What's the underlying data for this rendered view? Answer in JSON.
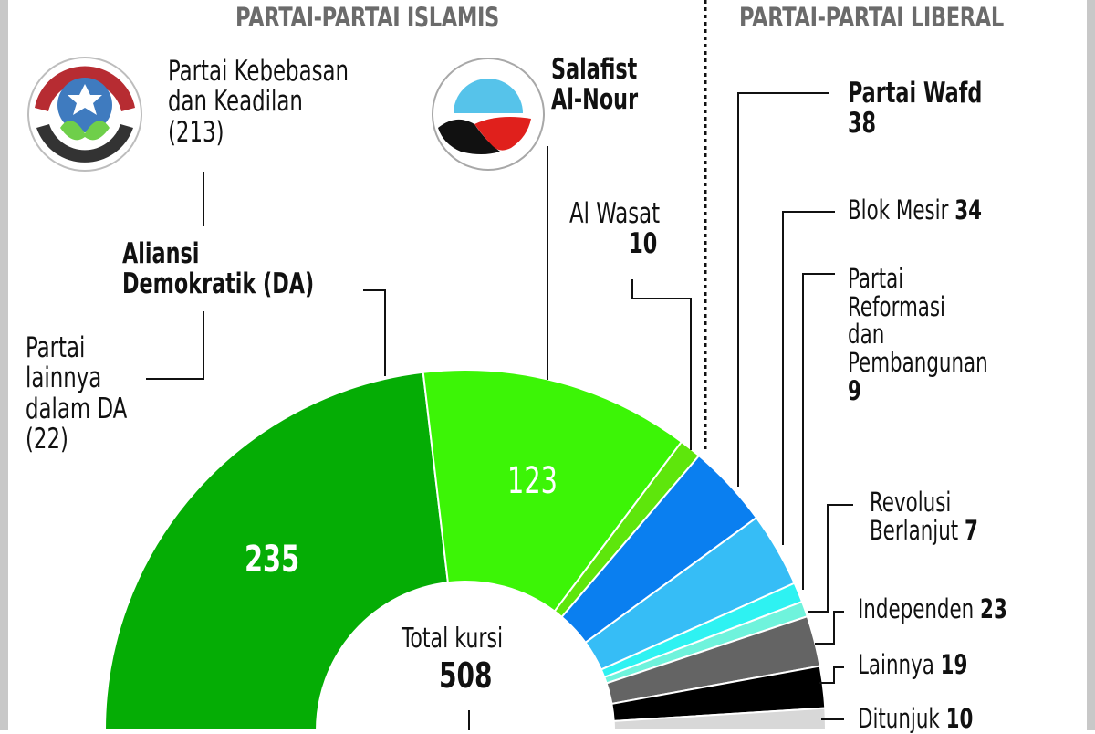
{
  "headers": {
    "islamist": "PARTAI-PARTAI ISLAMIS",
    "liberal": "PARTAI-PARTAI LIBERAL"
  },
  "logos": {
    "fjp": "freedom-and-justice-party-logo",
    "nour": "al-nour-party-logo"
  },
  "labels": {
    "fjp": {
      "line1": "Partai Kebebasan",
      "line2": "dan Keadilan",
      "line3": "(213)"
    },
    "da": {
      "line1": "Aliansi",
      "line2": "Demokratik (DA)"
    },
    "da_others": {
      "line1": "Partai",
      "line2": "lainnya",
      "line3": "dalam DA",
      "line4": "(22)"
    },
    "nour": {
      "line1": "Salafist",
      "line2": "Al-Nour"
    },
    "wasat": {
      "name": "Al Wasat",
      "value": "10"
    },
    "wafd": {
      "name": "Partai Wafd",
      "value": "38"
    },
    "blok": {
      "name": "Blok Mesir",
      "value": "34"
    },
    "reform": {
      "line1": "Partai",
      "line2": "Reformasi",
      "line3": "dan",
      "line4": "Pembangunan",
      "value": "9"
    },
    "revolusi": {
      "line1": "Revolusi",
      "line2": "Berlanjut",
      "value": "7"
    },
    "independen": {
      "name": "Independen",
      "value": "23"
    },
    "lainnya": {
      "name": "Lainnya",
      "value": "19"
    },
    "ditunjuk": {
      "name": "Ditunjuk",
      "value": "10"
    }
  },
  "center": {
    "label": "Total kursi",
    "value": "508"
  },
  "slice_labels": {
    "da": "235",
    "nour": "123"
  },
  "chart_data": {
    "type": "pie",
    "subtype": "half-donut",
    "title": "",
    "groups": [
      {
        "name": "PARTAI-PARTAI ISLAMIS",
        "members": [
          "Aliansi Demokratik (DA)",
          "Salafist Al-Nour",
          "Al Wasat"
        ]
      },
      {
        "name": "PARTAI-PARTAI LIBERAL",
        "members": [
          "Partai Wafd",
          "Blok Mesir",
          "Partai Reformasi dan Pembangunan",
          "Revolusi Berlanjut"
        ]
      }
    ],
    "categories": [
      "Aliansi Demokratik (DA)",
      "Salafist Al-Nour",
      "Al Wasat",
      "Partai Wafd",
      "Blok Mesir",
      "Partai Reformasi dan Pembangunan",
      "Revolusi Berlanjut",
      "Independen",
      "Lainnya",
      "Ditunjuk"
    ],
    "values": [
      235,
      123,
      10,
      38,
      34,
      9,
      7,
      23,
      19,
      10
    ],
    "colors": [
      "#05ad05",
      "#3cf506",
      "#5ee60c",
      "#0a7ff0",
      "#36bdf6",
      "#2ef2f2",
      "#6ff3dc",
      "#646464",
      "#000000",
      "#d8d8d8"
    ],
    "sub_breakdown": {
      "Aliansi Demokratik (DA)": [
        {
          "name": "Partai Kebebasan dan Keadilan",
          "value": 213
        },
        {
          "name": "Partai lainnya dalam DA",
          "value": 22
        }
      ]
    },
    "total": 508,
    "center_label": "Total kursi"
  }
}
